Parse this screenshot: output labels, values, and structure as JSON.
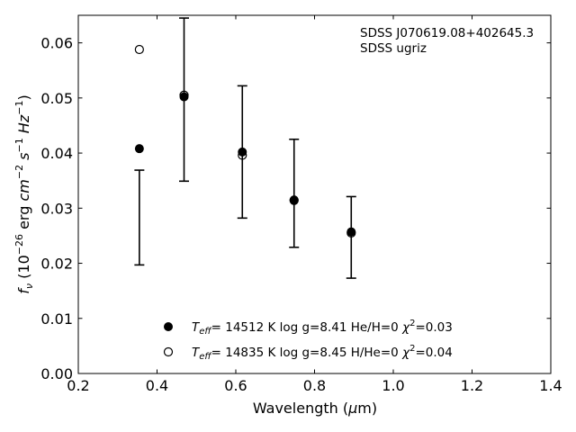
{
  "chart_data": {
    "type": "scatter",
    "title": "",
    "annotations": [
      "SDSS J070619.08+402645.3",
      "SDSS ugriz"
    ],
    "xlabel": {
      "pre": "Wavelength (",
      "greek": "μ",
      "post": "m)"
    },
    "ylabel": {
      "f": "f",
      "sub": "ν",
      "open": " (10",
      "exp1": "−26",
      "erg": " erg ",
      "cm": "cm",
      "exp2": "−2",
      "s": " s",
      "exp3": "−1",
      "hz": " Hz",
      "exp4": "−1",
      "close": ")"
    },
    "xlim": [
      0.2,
      1.4
    ],
    "ylim": [
      0.0,
      0.065
    ],
    "xticks": [
      0.2,
      0.4,
      0.6,
      0.8,
      1.0,
      1.2,
      1.4
    ],
    "xtick_labels": [
      "0.2",
      "0.4",
      "0.6",
      "0.8",
      "1.0",
      "1.2",
      "1.4"
    ],
    "yticks": [
      0.0,
      0.01,
      0.02,
      0.03,
      0.04,
      0.05,
      0.06
    ],
    "ytick_labels": [
      "0.00",
      "0.01",
      "0.02",
      "0.03",
      "0.04",
      "0.05",
      "0.06"
    ],
    "grid": false,
    "legend_position": "lower center",
    "observed": {
      "x": [
        0.3551,
        0.4686,
        0.6166,
        0.748,
        0.8932
      ],
      "y": [
        0.0283,
        0.0497,
        0.0402,
        0.0327,
        0.0247
      ],
      "yerr": [
        0.0086,
        0.0148,
        0.012,
        0.0098,
        0.0074
      ]
    },
    "series": [
      {
        "legend": {
          "teff": "T",
          "teff_sub": "eff",
          "text": "= 14512 K  log g=8.41  He/H=0  ",
          "chi": "χ",
          "chi_sup": "2",
          "chi_val": "=0.03"
        },
        "marker": "filled-circle",
        "x": [
          0.3551,
          0.4686,
          0.6166,
          0.748,
          0.8932
        ],
        "y": [
          0.0408,
          0.0502,
          0.0402,
          0.0315,
          0.0257
        ]
      },
      {
        "legend": {
          "teff": "T",
          "teff_sub": "eff",
          "text": "= 14835 K  log g=8.45  H/He=0  ",
          "chi": "χ",
          "chi_sup": "2",
          "chi_val": "=0.04"
        },
        "marker": "open-circle",
        "x": [
          0.3551,
          0.4686,
          0.6166,
          0.748,
          0.8932
        ],
        "y": [
          0.0588,
          0.0505,
          0.0396,
          0.0314,
          0.0255
        ]
      }
    ]
  }
}
